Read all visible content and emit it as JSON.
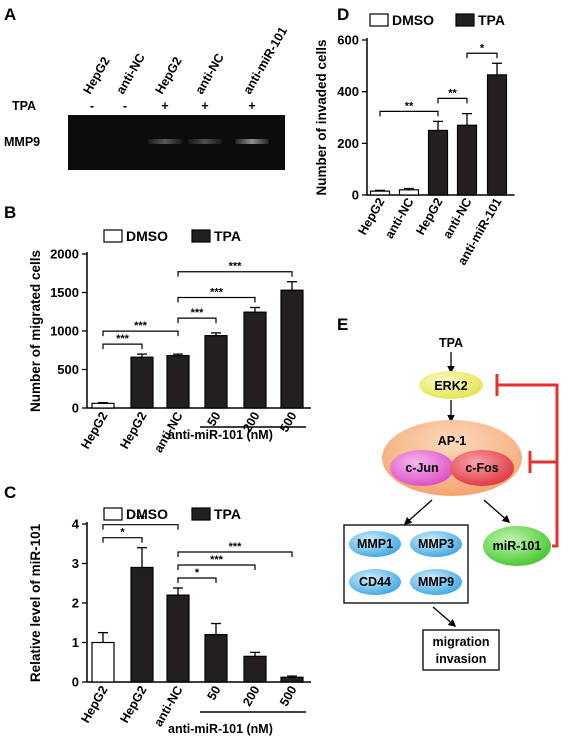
{
  "panels": {
    "a": {
      "label": "A",
      "lanes": [
        "HepG2",
        "anti-NC",
        "HepG2",
        "anti-NC",
        "anti-miR-101"
      ],
      "treat_label": "TPA",
      "treatments": [
        "-",
        "-",
        "+",
        "+",
        "+"
      ],
      "band_label": "MMP9",
      "band_intensity": [
        0.0,
        0.0,
        0.35,
        0.3,
        0.6
      ]
    },
    "b": {
      "label": "B",
      "group_label": "anti-miR-101 (nM)"
    },
    "c": {
      "label": "C",
      "group_label": "anti-miR-101 (nM)"
    },
    "d": {
      "label": "D"
    },
    "e": {
      "label": "E",
      "tpa": "TPA",
      "erk": "ERK2",
      "ap1": "AP-1",
      "cjun": "c-Jun",
      "cfos": "c-Fos",
      "mirna": "miR-101",
      "mmps": [
        "MMP1",
        "MMP3",
        "CD44",
        "MMP9"
      ],
      "outcome_lines": [
        "migration",
        "invasion"
      ]
    }
  },
  "colors": {
    "dmso": "#ffffff",
    "tpa": "#231f20",
    "inhibit": "#e8312f",
    "erk": "#f2f16b",
    "ap1": "#f6b183",
    "cjun": "#e964cf",
    "cfos": "#ee4d57",
    "mir": "#63d64a",
    "mmp": "#59b9ea"
  },
  "chart_data": [
    {
      "panel": "B",
      "type": "bar",
      "ylabel": "Number of migrated cells",
      "ylim": [
        0,
        2000
      ],
      "yticks": [
        0,
        500,
        1000,
        1500,
        2000
      ],
      "categories": [
        "HepG2",
        "HepG2",
        "anti-NC",
        "50",
        "200",
        "500"
      ],
      "values": [
        60,
        660,
        680,
        940,
        1245,
        1530
      ],
      "errors": [
        10,
        40,
        20,
        35,
        60,
        110
      ],
      "treatment": [
        "DMSO",
        "TPA",
        "TPA",
        "TPA",
        "TPA",
        "TPA"
      ],
      "legend": [
        "DMSO",
        "TPA"
      ],
      "significance": [
        {
          "from": 0,
          "to": 1,
          "label": "***"
        },
        {
          "from": 0,
          "to": 2,
          "label": "***"
        },
        {
          "from": 2,
          "to": 3,
          "label": "***"
        },
        {
          "from": 2,
          "to": 4,
          "label": "***"
        },
        {
          "from": 2,
          "to": 5,
          "label": "***"
        }
      ]
    },
    {
      "panel": "C",
      "type": "bar",
      "ylabel": "Relative level of miR-101",
      "ylim": [
        0,
        4
      ],
      "yticks": [
        0,
        1,
        2,
        3,
        4
      ],
      "categories": [
        "HepG2",
        "HepG2",
        "anti-NC",
        "50",
        "200",
        "500"
      ],
      "values": [
        1.0,
        2.9,
        2.2,
        1.2,
        0.65,
        0.12
      ],
      "errors": [
        0.25,
        0.5,
        0.18,
        0.28,
        0.1,
        0.03
      ],
      "treatment": [
        "DMSO",
        "TPA",
        "TPA",
        "TPA",
        "TPA",
        "TPA"
      ],
      "legend": [
        "DMSO",
        "TPA"
      ],
      "significance": [
        {
          "from": 0,
          "to": 1,
          "label": "*"
        },
        {
          "from": 0,
          "to": 2,
          "label": "**"
        },
        {
          "from": 2,
          "to": 3,
          "label": "*"
        },
        {
          "from": 2,
          "to": 4,
          "label": "***"
        },
        {
          "from": 2,
          "to": 5,
          "label": "***"
        }
      ]
    },
    {
      "panel": "D",
      "type": "bar",
      "ylabel": "Number of invaded cells",
      "ylim": [
        0,
        600
      ],
      "yticks": [
        0,
        200,
        400,
        600
      ],
      "categories": [
        "HepG2",
        "anti-NC",
        "HepG2",
        "anti-NC",
        "anti-miR-101"
      ],
      "values": [
        15,
        20,
        250,
        270,
        465
      ],
      "errors": [
        3,
        5,
        35,
        45,
        45
      ],
      "treatment": [
        "DMSO",
        "DMSO",
        "TPA",
        "TPA",
        "TPA"
      ],
      "legend": [
        "DMSO",
        "TPA"
      ],
      "significance": [
        {
          "from": 0,
          "to": 2,
          "label": "**"
        },
        {
          "from": 2,
          "to": 3,
          "label": "**"
        },
        {
          "from": 3,
          "to": 4,
          "label": "*"
        }
      ]
    }
  ]
}
